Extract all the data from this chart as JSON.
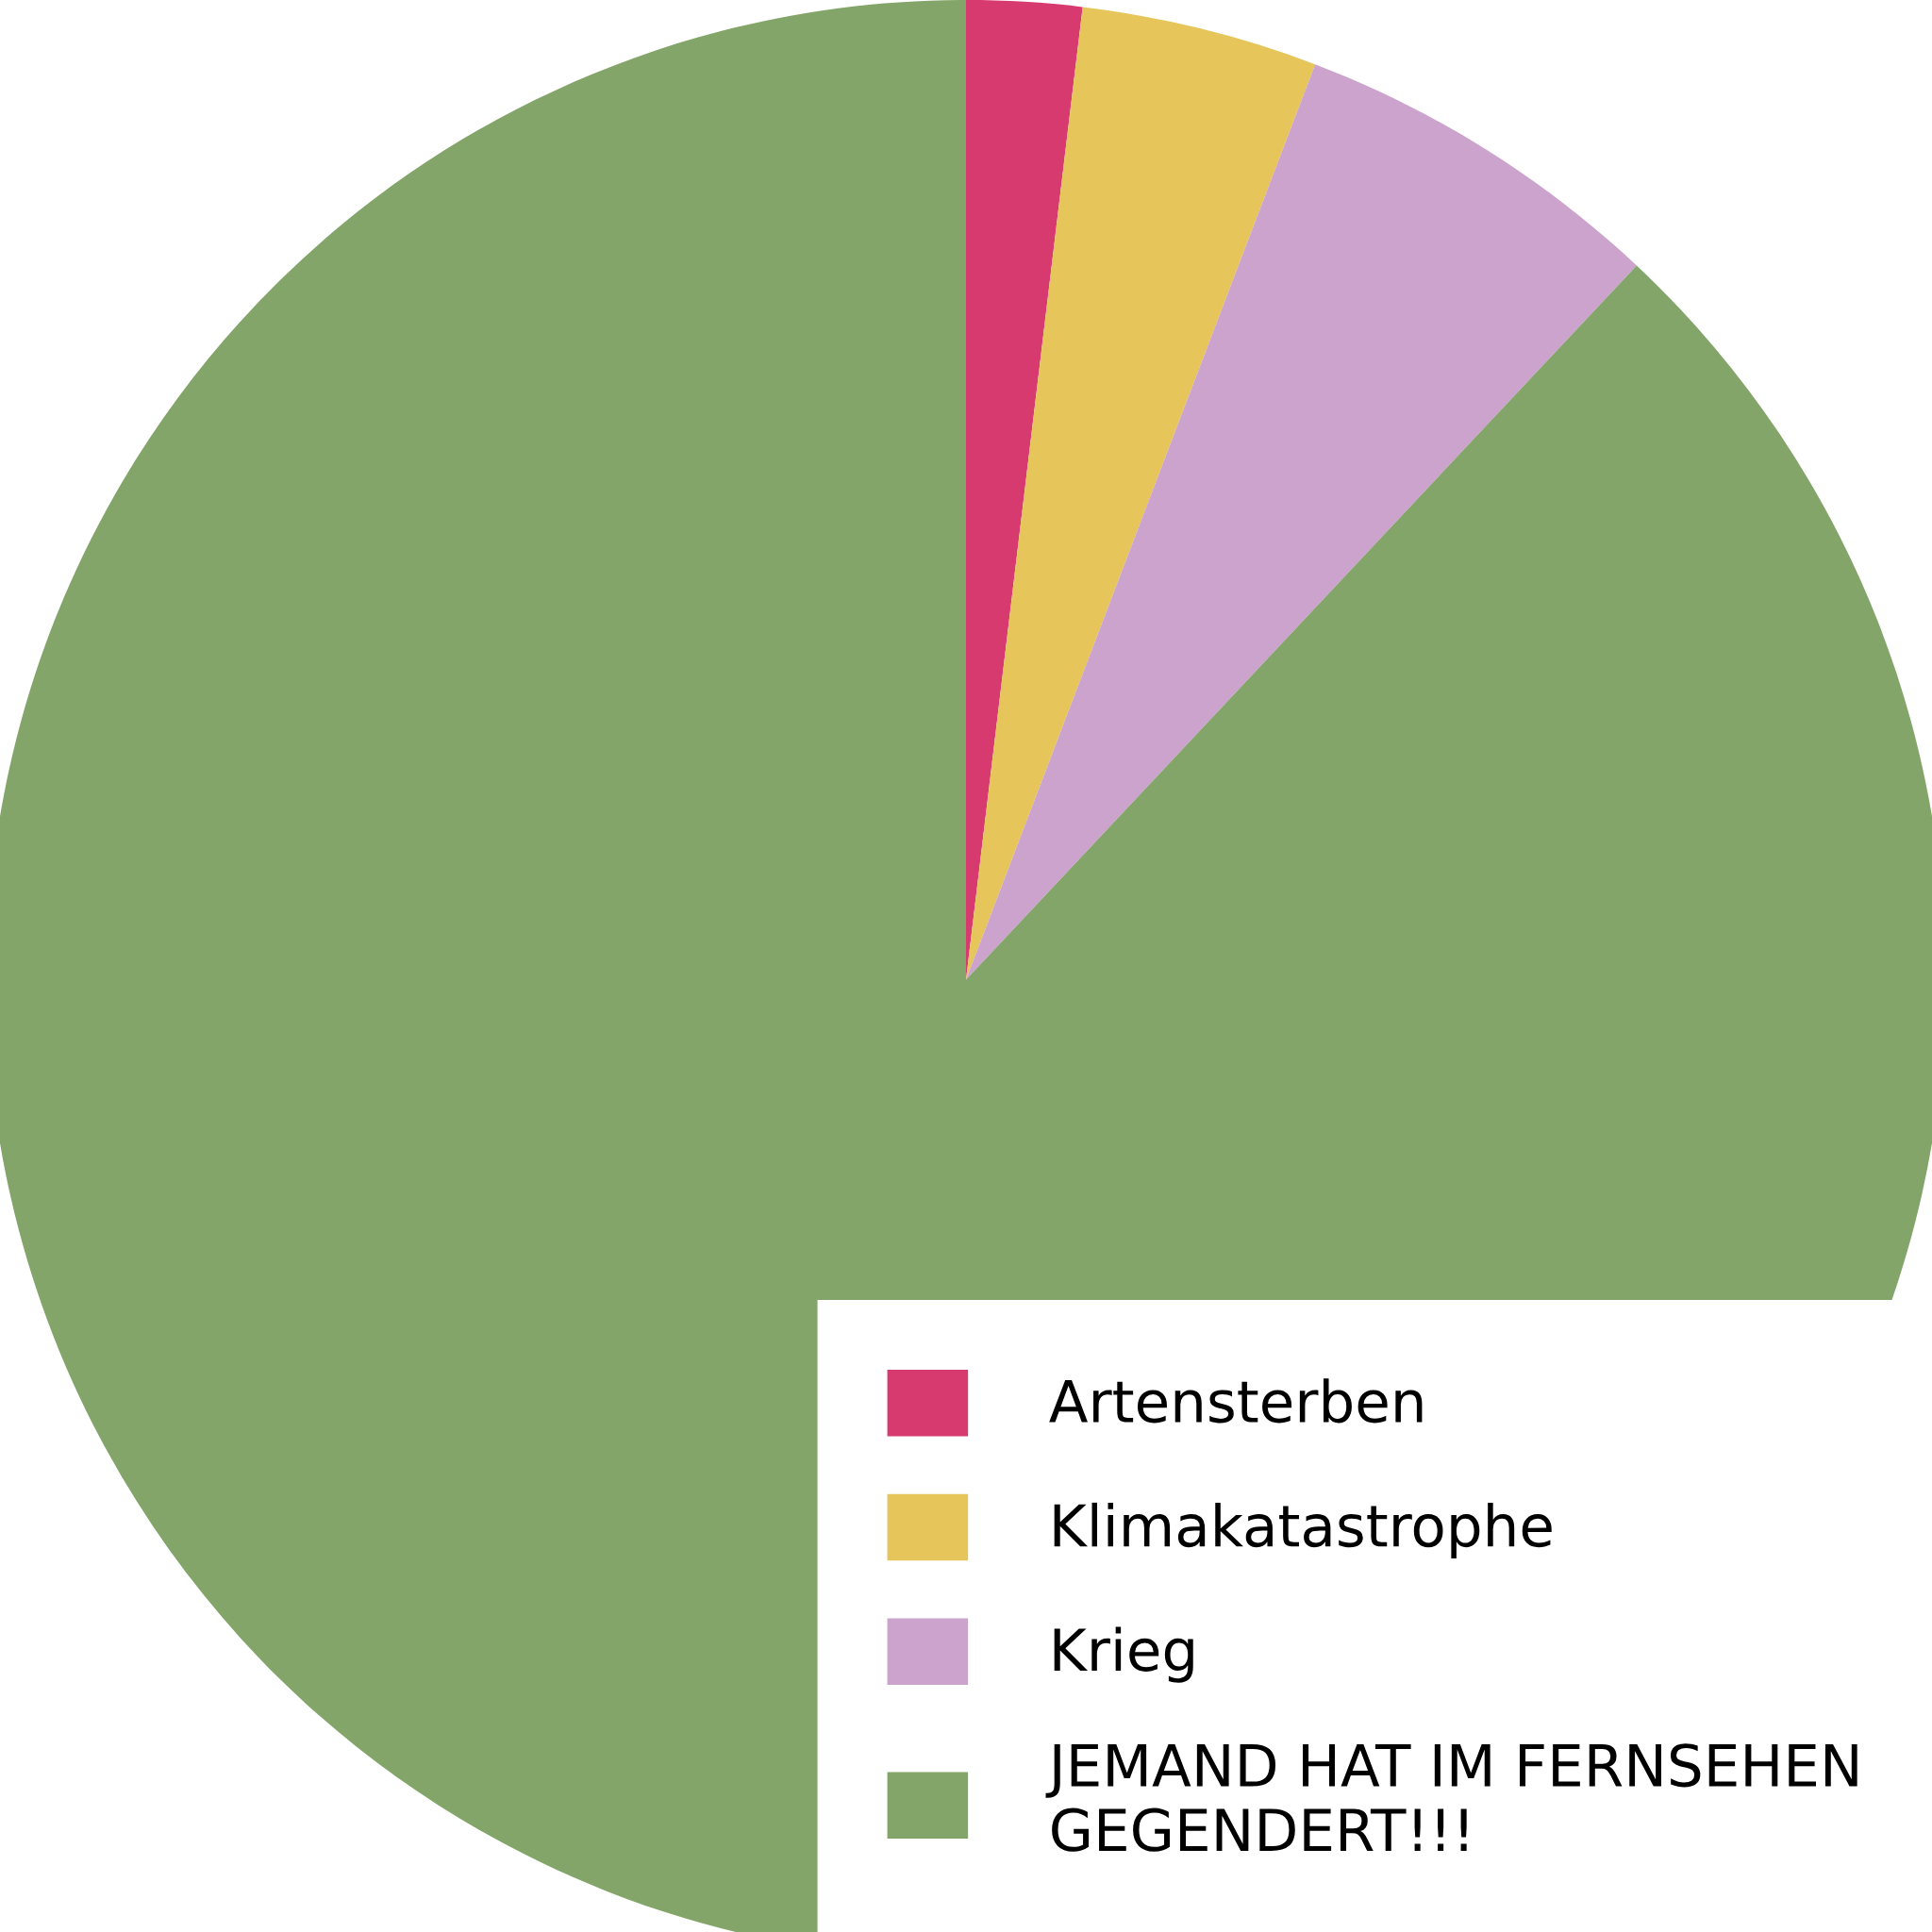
{
  "chart_data": {
    "type": "pie",
    "categories": [
      "Artensterben",
      "Klimakatastrophe",
      "Krieg",
      "JEMAND HAT IM FERNSEHEN\nGEGENDERT!!!"
    ],
    "values": [
      1.9,
      3.9,
      6.2,
      88.0
    ],
    "colors": [
      "#d63a6e",
      "#e6c55a",
      "#cba3cc",
      "#83a56a"
    ],
    "legend": "bottom right"
  }
}
